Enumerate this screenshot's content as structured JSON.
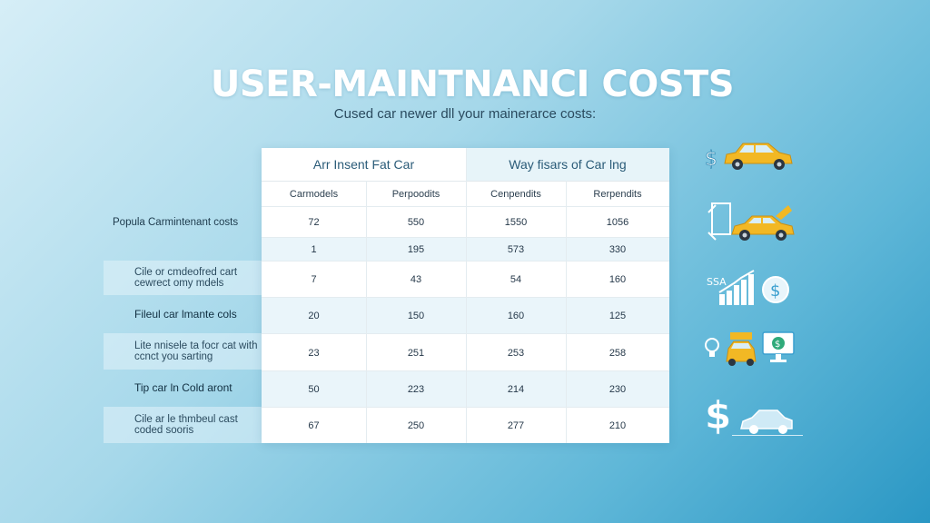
{
  "title": "USER-MAINTNANCI COSTS",
  "subtitle": "Cused car newer dll your mainerarce costs:",
  "table": {
    "group_headers": [
      "Arr Insent Fat Car",
      "Way fisars of Car lng"
    ],
    "col_headers": [
      "Carmodels",
      "Perpoodits",
      "Cenpendits",
      "Rerpendits"
    ],
    "rows": [
      {
        "label": "Popula Carmintenant costs",
        "values": [
          "72",
          "550",
          "1550",
          "1056"
        ]
      },
      {
        "label": "",
        "values": [
          "1",
          "195",
          "573",
          "330"
        ]
      },
      {
        "label": "Cile or cmdeofred cart cewrect omy mdels",
        "values": [
          "7",
          "43",
          "54",
          "160"
        ]
      },
      {
        "label": "Fileul car lmante cols",
        "values": [
          "20",
          "150",
          "160",
          "125"
        ]
      },
      {
        "label": "Lite nnisele ta focr cat with ccnct you sarting",
        "values": [
          "23",
          "251",
          "253",
          "258"
        ]
      },
      {
        "label": "Tip car ln Cold aront",
        "values": [
          "50",
          "223",
          "214",
          "230"
        ]
      },
      {
        "label": "Cile ar le thmbeul cast coded sooris",
        "values": [
          "67",
          "250",
          "277",
          "210"
        ]
      }
    ]
  },
  "icons": [
    "dollar-car-icon",
    "document-car-icon",
    "savings-growth-chart-icon",
    "lightbulb-car-monitor-icon",
    "dollar-car-side-icon"
  ],
  "icon_text": {
    "savings": "SSA"
  },
  "colors": {
    "car_yellow": "#f2b824",
    "accent_blue": "#3a9fcf"
  }
}
